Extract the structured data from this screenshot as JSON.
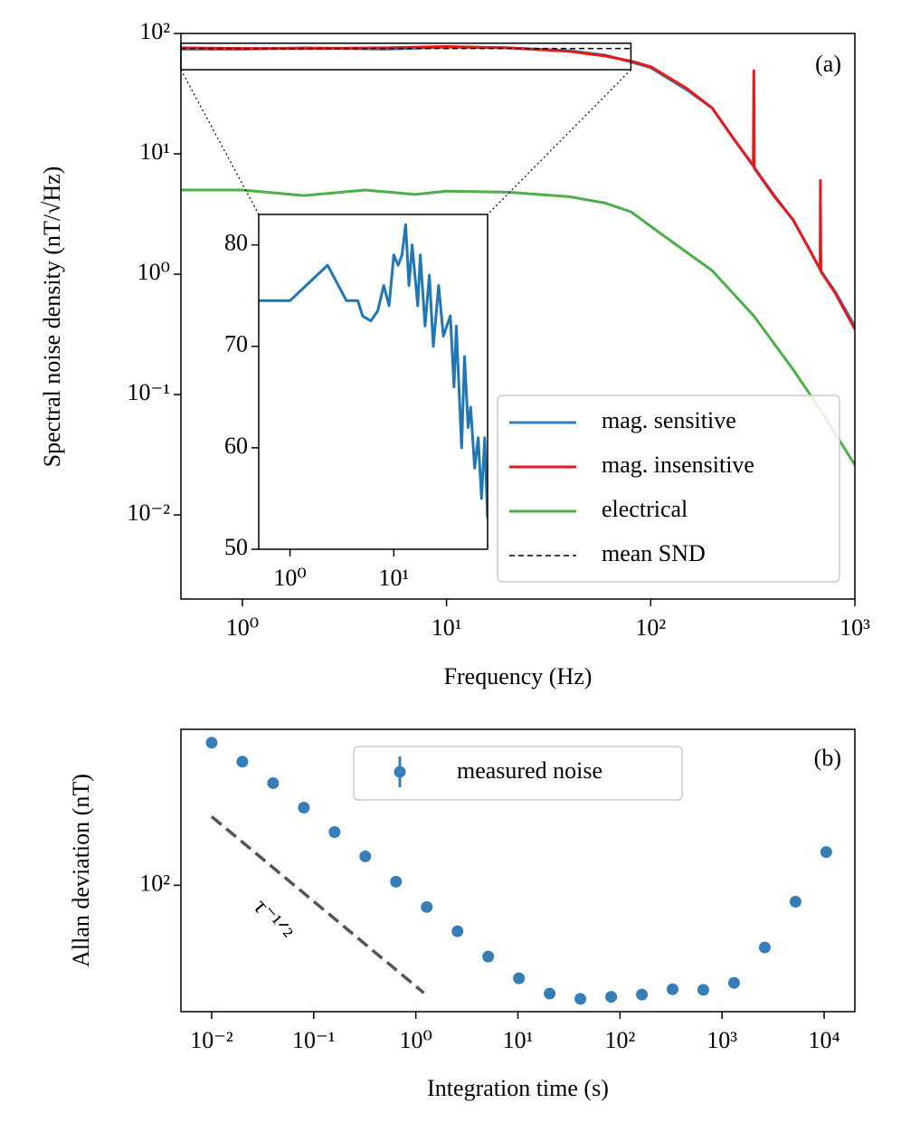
{
  "chart_data": [
    {
      "type": "line",
      "annotation": "(a)",
      "xlabel": "Frequency (Hz)",
      "ylabel": "Spectral noise density (nT/√Hz)",
      "xscale": "log",
      "yscale": "log",
      "xlim": [
        0.5,
        1000
      ],
      "ylim": [
        0.002,
        100
      ],
      "xticks": [
        {
          "value": 1,
          "label": "10⁰"
        },
        {
          "value": 10,
          "label": "10¹"
        },
        {
          "value": 100,
          "label": "10²"
        },
        {
          "value": 1000,
          "label": "10³"
        }
      ],
      "yticks": [
        {
          "value": 0.01,
          "label": "10⁻²"
        },
        {
          "value": 0.1,
          "label": "10⁻¹"
        },
        {
          "value": 1,
          "label": "10⁰"
        },
        {
          "value": 10,
          "label": "10¹"
        },
        {
          "value": 100,
          "label": "10²"
        }
      ],
      "legend": "lower right",
      "series": [
        {
          "name": "mag. sensitive",
          "color": "#377eb8",
          "dash": false,
          "x": [
            0.5,
            1,
            2,
            5,
            10,
            20,
            40,
            60,
            80,
            100,
            150,
            200,
            250,
            320,
            400,
            500,
            600,
            680,
            800,
            1000
          ],
          "values": [
            74,
            74,
            76,
            74,
            77,
            76,
            72,
            66,
            58,
            52,
            34,
            24,
            14,
            7.8,
            4.6,
            2.8,
            1.6,
            1.07,
            0.72,
            0.37
          ]
        },
        {
          "name": "mag. insensitive",
          "color": "#e41a1c",
          "dash": false,
          "x": [
            0.5,
            1,
            2,
            5,
            10,
            20,
            40,
            60,
            80,
            100,
            150,
            200,
            250,
            318,
            320,
            322,
            400,
            500,
            600,
            676,
            678,
            682,
            800,
            1000
          ],
          "values": [
            76,
            75,
            75,
            76,
            78,
            76,
            71,
            65,
            59,
            53,
            35,
            24,
            14,
            8,
            49,
            7.6,
            4.5,
            2.8,
            1.6,
            1.1,
            6.0,
            1.05,
            0.7,
            0.35
          ]
        },
        {
          "name": "electrical",
          "color": "#4daf4a",
          "dash": false,
          "x": [
            0.5,
            1,
            2,
            4,
            7,
            10,
            20,
            40,
            60,
            80,
            100,
            200,
            320,
            500,
            680,
            1000
          ],
          "values": [
            5.0,
            5.0,
            4.5,
            5.0,
            4.6,
            4.9,
            4.8,
            4.4,
            3.9,
            3.3,
            2.5,
            1.07,
            0.45,
            0.16,
            0.074,
            0.026
          ]
        },
        {
          "name": "mean SND",
          "color": "#000000",
          "dash": true,
          "x": [
            0.5,
            80
          ],
          "values": [
            75,
            75
          ]
        }
      ]
    },
    {
      "type": "line",
      "xscale": "log",
      "yscale": "linear",
      "xlim": [
        0.5,
        80
      ],
      "ylim": [
        50,
        83
      ],
      "xticks": [
        {
          "value": 1,
          "label": "10⁰"
        },
        {
          "value": 10,
          "label": "10¹"
        }
      ],
      "yticks": [
        50,
        60,
        70,
        80
      ],
      "series": [
        {
          "color": "#1f77b4",
          "dash": false,
          "x": [
            0.5,
            1,
            2.3,
            3.5,
            4.5,
            5,
            6,
            7,
            8,
            9,
            10,
            11,
            12,
            13,
            14,
            15,
            17,
            18,
            20,
            22,
            24,
            27,
            30,
            35,
            38,
            40,
            45,
            48,
            52,
            55,
            60,
            65,
            70,
            75,
            80
          ],
          "values": [
            74.5,
            74.5,
            78,
            74.5,
            74.5,
            73,
            72.5,
            73.5,
            76,
            74,
            79,
            78,
            79,
            82,
            76,
            80,
            74,
            79,
            72,
            77,
            70,
            76,
            71,
            73,
            66,
            72,
            60,
            69,
            62,
            64,
            58,
            61,
            55,
            61,
            53
          ]
        }
      ]
    },
    {
      "type": "scatter",
      "annotation": "(b)",
      "xlabel": "Integration time (s)",
      "ylabel": "Allan deviation (nT)",
      "xscale": "log",
      "yscale": "log",
      "xlim": [
        0.005,
        20000
      ],
      "ylim": [
        18,
        830
      ],
      "xticks": [
        {
          "value": 0.01,
          "label": "10⁻²"
        },
        {
          "value": 0.1,
          "label": "10⁻¹"
        },
        {
          "value": 1,
          "label": "10⁰"
        },
        {
          "value": 10,
          "label": "10¹"
        },
        {
          "value": 100,
          "label": "10²"
        },
        {
          "value": 1000,
          "label": "10³"
        },
        {
          "value": 10000,
          "label": "10⁴"
        }
      ],
      "yticks": [
        {
          "value": 100,
          "label": "10²"
        }
      ],
      "legend": "upper center",
      "series": [
        {
          "name": "measured noise",
          "color": "#377eb8",
          "x": [
            0.01,
            0.02,
            0.04,
            0.08,
            0.16,
            0.32,
            0.64,
            1.28,
            2.56,
            5.12,
            10.24,
            20.48,
            40.96,
            81.92,
            163.84,
            327.68,
            655.36,
            1310.72,
            2621.44,
            5242.88,
            10485.76
          ],
          "values": [
            692,
            535,
            400,
            287,
            206,
            148,
            105,
            74.5,
            53.6,
            38,
            28.3,
            23,
            21.4,
            22,
            22.7,
            24.4,
            24.2,
            26.6,
            43,
            80,
            157
          ]
        }
      ],
      "reference_line": {
        "label": "τ⁻¹ᐟ²",
        "color": "#555555",
        "x": [
          0.01,
          1.2
        ],
        "values": [
          254,
          23.2
        ]
      }
    }
  ]
}
